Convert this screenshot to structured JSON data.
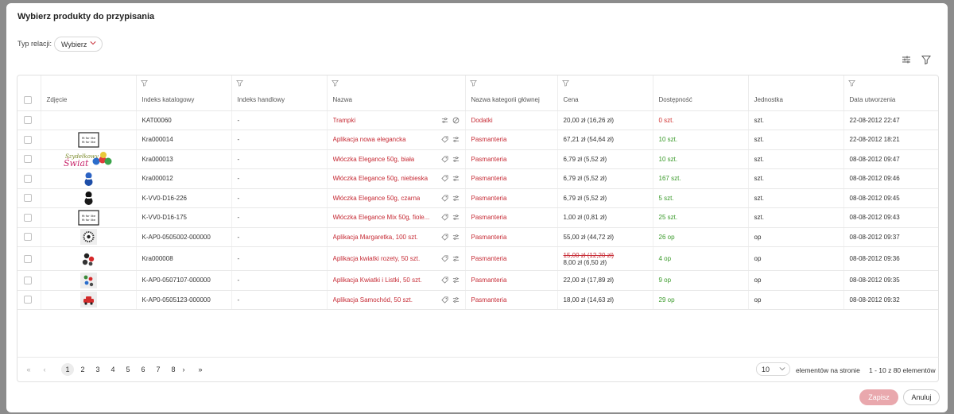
{
  "modal": {
    "title": "Wybierz produkty do przypisania",
    "relation_label": "Typ relacji:",
    "relation_value": "Wybierz"
  },
  "table": {
    "columns": [
      "Zdjęcie",
      "Indeks katalogowy",
      "Indeks handlowy",
      "Nazwa",
      "Nazwa kategorii głównej",
      "Cena",
      "Dostępność",
      "Jednostka",
      "Data utworzenia"
    ],
    "rows": [
      {
        "image": "",
        "catalog": "KAT00060",
        "trade": "-",
        "name": "Trampki",
        "category": "Dodatki",
        "price": "20,00 zł (16,26 zł)",
        "old_price": "",
        "availability": "0 szt.",
        "avail_status": "red",
        "unit": "szt.",
        "date": "22-08-2012 22:47",
        "icons": [
          "sliders-icon",
          "block-icon"
        ]
      },
      {
        "image": "label-box",
        "catalog": "Kra000014",
        "trade": "-",
        "name": "Aplikacja nowa elegancka",
        "category": "Pasmanteria",
        "price": "67,21 zł (54,64 zł)",
        "old_price": "",
        "availability": "10 szt.",
        "avail_status": "green",
        "unit": "szt.",
        "date": "22-08-2012 18:21",
        "icons": [
          "tag-icon",
          "sliders-icon"
        ]
      },
      {
        "image": "logo",
        "catalog": "Kra000013",
        "trade": "-",
        "name": "Włóczka Elegance 50g, biała",
        "category": "Pasmanteria",
        "price": "6,79 zł (5,52 zł)",
        "old_price": "",
        "availability": "10 szt.",
        "avail_status": "green",
        "unit": "szt.",
        "date": "08-08-2012 09:47",
        "icons": [
          "tag-icon",
          "sliders-icon"
        ]
      },
      {
        "image": "yarn-blue",
        "catalog": "Kra000012",
        "trade": "-",
        "name": "Włóczka Elegance 50g, niebieska",
        "category": "Pasmanteria",
        "price": "6,79 zł (5,52 zł)",
        "old_price": "",
        "availability": "167 szt.",
        "avail_status": "green",
        "unit": "szt.",
        "date": "08-08-2012 09:46",
        "icons": [
          "tag-icon",
          "sliders-icon"
        ]
      },
      {
        "image": "yarn-black",
        "catalog": "K-VV0-D16-226",
        "trade": "-",
        "name": "Włóczka Elegance 50g, czarna",
        "category": "Pasmanteria",
        "price": "6,79 zł (5,52 zł)",
        "old_price": "",
        "availability": "5 szt.",
        "avail_status": "green",
        "unit": "szt.",
        "date": "08-08-2012 09:45",
        "icons": [
          "tag-icon",
          "sliders-icon"
        ]
      },
      {
        "image": "label-box",
        "catalog": "K-VV0-D16-175",
        "trade": "-",
        "name": "Włóczka Elegance Mix 50g, fiole...",
        "category": "Pasmanteria",
        "price": "1,00 zł (0,81 zł)",
        "old_price": "",
        "availability": "25 szt.",
        "avail_status": "green",
        "unit": "szt.",
        "date": "08-08-2012 09:43",
        "icons": [
          "tag-icon",
          "sliders-icon"
        ]
      },
      {
        "image": "flower",
        "catalog": "K-AP0-0505002-000000",
        "trade": "-",
        "name": "Aplikacja Margaretka, 100 szt.",
        "category": "Pasmanteria",
        "price": "55,00 zł (44,72 zł)",
        "old_price": "",
        "availability": "26 op",
        "avail_status": "green",
        "unit": "op",
        "date": "08-08-2012 09:37",
        "icons": [
          "tag-icon",
          "sliders-icon"
        ]
      },
      {
        "image": "roses",
        "catalog": "Kra000008",
        "trade": "-",
        "name": "Aplikacja kwiatki rozety, 50 szt.",
        "category": "Pasmanteria",
        "price": "8,00 zł (6,50 zł)",
        "old_price": "15,00 zł (12,20 zł)",
        "availability": "4 op",
        "avail_status": "green",
        "unit": "op",
        "date": "08-08-2012 09:36",
        "icons": [
          "tag-icon",
          "sliders-icon"
        ]
      },
      {
        "image": "flowers-leaves",
        "catalog": "K-AP0-0507107-000000",
        "trade": "-",
        "name": "Aplikacja Kwiatki i Listki, 50 szt.",
        "category": "Pasmanteria",
        "price": "22,00 zł (17,89 zł)",
        "old_price": "",
        "availability": "9 op",
        "avail_status": "green",
        "unit": "op",
        "date": "08-08-2012 09:35",
        "icons": [
          "tag-icon",
          "sliders-icon"
        ]
      },
      {
        "image": "car",
        "catalog": "K-AP0-0505123-000000",
        "trade": "-",
        "name": "Aplikacja Samochód, 50 szt.",
        "category": "Pasmanteria",
        "price": "18,00 zł (14,63 zł)",
        "old_price": "",
        "availability": "29 op",
        "avail_status": "green",
        "unit": "op",
        "date": "08-08-2012 09:32",
        "icons": [
          "tag-icon",
          "sliders-icon"
        ]
      }
    ]
  },
  "pagination": {
    "pages": [
      "1",
      "2",
      "3",
      "4",
      "5",
      "6",
      "7",
      "8"
    ],
    "current": "1",
    "first": "«",
    "prev": "‹",
    "next": "›",
    "last": "»",
    "per_page": "10",
    "per_page_label": "elementów na stronie",
    "range": "1 - 10 z 80 elementów"
  },
  "buttons": {
    "save": "Zapisz",
    "cancel": "Anuluj"
  },
  "colors": {
    "accent": "#c62b35",
    "success": "#3a9a2a",
    "save_bg": "#e9a8ad"
  },
  "logo_text": "Szydełkowy Świat",
  "label_text": "fit for like"
}
